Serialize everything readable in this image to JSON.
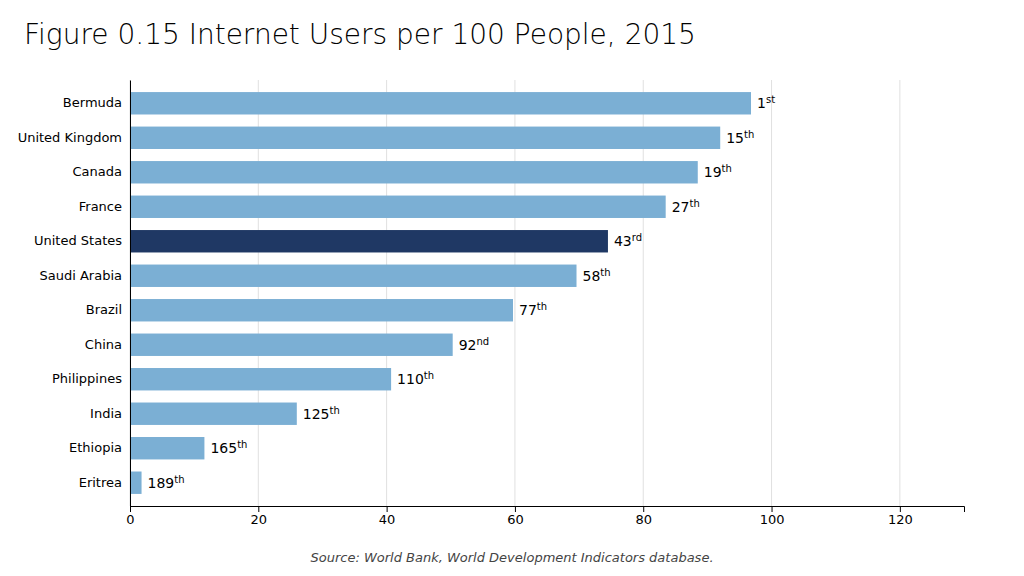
{
  "chart_data": {
    "type": "bar",
    "orientation": "horizontal",
    "title": "Figure 0.15 Internet Users per 100 People, 2015",
    "annotations": [
      "Source: World Bank, World Development Indicators database."
    ],
    "categories": [
      "Bermuda",
      "United Kingdom",
      "Canada",
      "France",
      "United States",
      "Saudi Arabia",
      "Brazil",
      "China",
      "Philippines",
      "India",
      "Ethiopia",
      "Eritrea"
    ],
    "values": [
      96.8,
      92.0,
      88.5,
      83.5,
      74.5,
      69.6,
      59.7,
      50.3,
      40.7,
      26.0,
      11.6,
      1.8
    ],
    "rank_labels": [
      {
        "base": "1",
        "superscript": "st"
      },
      {
        "base": "15",
        "superscript": "th"
      },
      {
        "base": "19",
        "superscript": "th"
      },
      {
        "base": "27",
        "superscript": "th"
      },
      {
        "base": "43",
        "superscript": "rd"
      },
      {
        "base": "58",
        "superscript": "th"
      },
      {
        "base": "77",
        "superscript": "th"
      },
      {
        "base": "92",
        "superscript": "nd"
      },
      {
        "base": "110",
        "superscript": "th"
      },
      {
        "base": "125",
        "superscript": "th"
      },
      {
        "base": "165",
        "superscript": "th"
      },
      {
        "base": "189",
        "superscript": "th"
      }
    ],
    "colors": [
      "#7bafd4",
      "#7bafd4",
      "#7bafd4",
      "#7bafd4",
      "#1f3864",
      "#7bafd4",
      "#7bafd4",
      "#7bafd4",
      "#7bafd4",
      "#7bafd4",
      "#7bafd4",
      "#7bafd4"
    ],
    "xlim": [
      0,
      130
    ],
    "xticks": [
      0,
      20,
      40,
      60,
      80,
      100,
      120
    ],
    "grid": true
  }
}
